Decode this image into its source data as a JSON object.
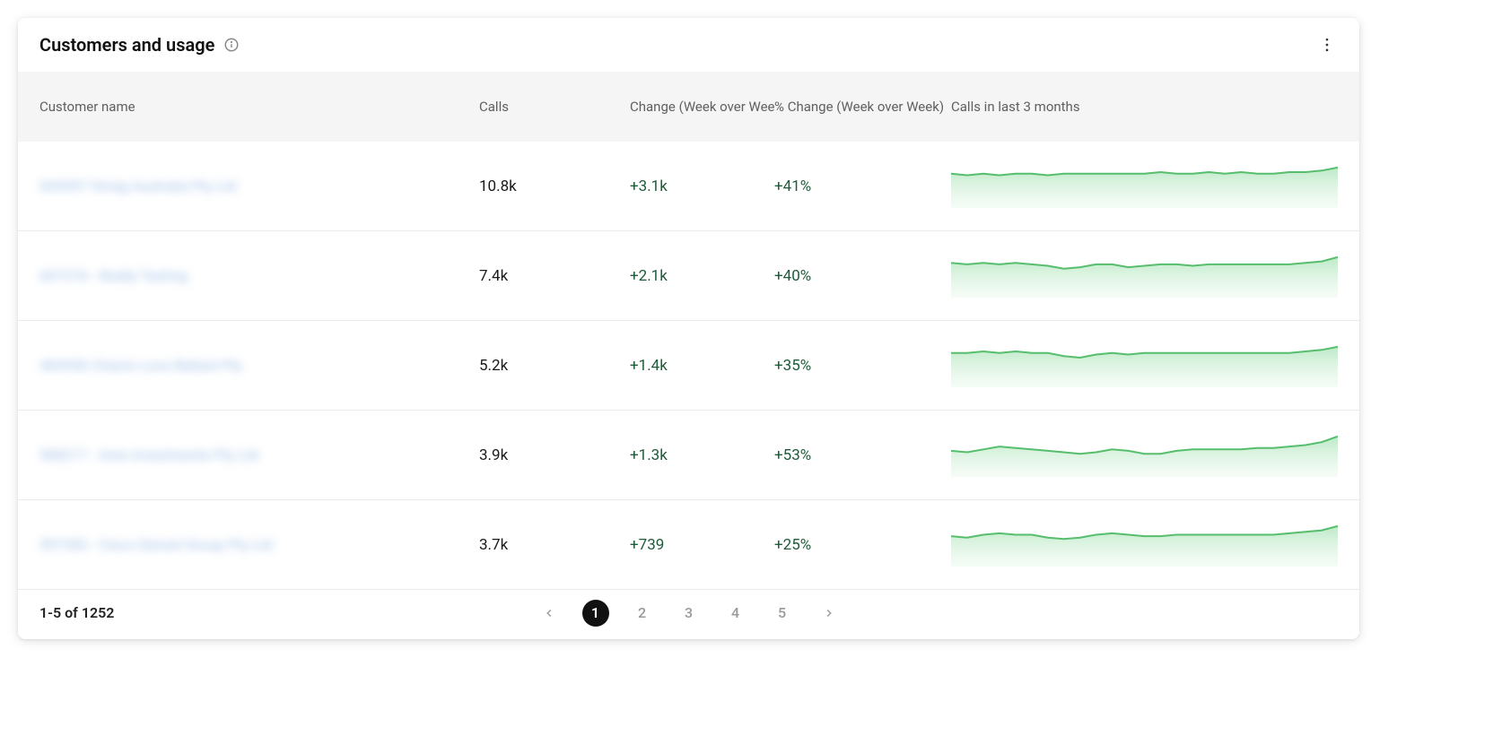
{
  "card": {
    "title": "Customers and usage"
  },
  "columns": {
    "name": "Customer name",
    "calls": "Calls",
    "change": "Change (Week over Week)",
    "pct_change": "% Change (Week over Week)",
    "spark": "Calls in last 3 months"
  },
  "spark_style": {
    "stroke": "#56be6d",
    "fill_top": "#b6e7c1",
    "fill_bottom": "#e8f7eb",
    "stroke_width": 2
  },
  "rows": [
    {
      "name": "605597 Smeg Australia Pty Ltd",
      "calls": "10.8k",
      "change": "+3.1k",
      "pct_change": "+41%",
      "spark": [
        22,
        21,
        22,
        21,
        22,
        22,
        21,
        22,
        22,
        22,
        22,
        22,
        22,
        23,
        22,
        22,
        23,
        22,
        23,
        22,
        22,
        23,
        23,
        24,
        26
      ]
    },
    {
      "name": "607276 - Really Tasting",
      "calls": "7.4k",
      "change": "+2.1k",
      "pct_change": "+40%",
      "spark": [
        24,
        23,
        24,
        23,
        24,
        23,
        22,
        20,
        21,
        23,
        23,
        21,
        22,
        23,
        23,
        22,
        23,
        23,
        23,
        23,
        23,
        23,
        24,
        25,
        28
      ]
    },
    {
      "name": "484956 Chanin Loos Ballast Pty",
      "calls": "5.2k",
      "change": "+1.4k",
      "pct_change": "+35%",
      "spark": [
        22,
        22,
        23,
        22,
        23,
        22,
        22,
        20,
        19,
        21,
        22,
        21,
        22,
        22,
        22,
        22,
        22,
        22,
        22,
        22,
        22,
        22,
        23,
        24,
        26
      ]
    },
    {
      "name": "588217 - Ares Investments Pty Ltd",
      "calls": "3.9k",
      "change": "+1.3k",
      "pct_change": "+53%",
      "spark": [
        18,
        17,
        19,
        21,
        20,
        19,
        18,
        17,
        16,
        17,
        19,
        18,
        16,
        16,
        18,
        19,
        19,
        19,
        19,
        20,
        20,
        21,
        22,
        24,
        28
      ]
    },
    {
      "name": "597382 - Cisco Densel Group Pty Ltd",
      "calls": "3.7k",
      "change": "+739",
      "pct_change": "+25%",
      "spark": [
        21,
        20,
        22,
        23,
        22,
        22,
        20,
        19,
        20,
        22,
        23,
        22,
        21,
        21,
        22,
        22,
        22,
        22,
        22,
        22,
        22,
        23,
        24,
        25,
        28
      ]
    }
  ],
  "pagination": {
    "summary": "1-5 of 1252",
    "pages": [
      "1",
      "2",
      "3",
      "4",
      "5"
    ],
    "current": "1"
  }
}
